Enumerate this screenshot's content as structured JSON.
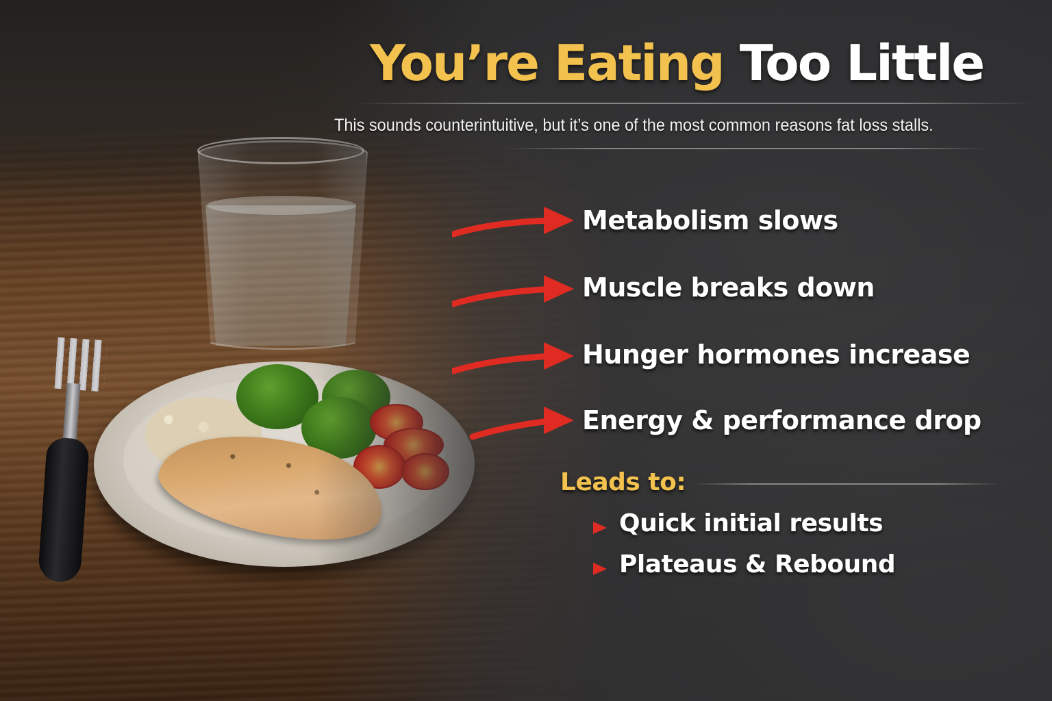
{
  "title": {
    "part1": "You’re Eating",
    "part2": "Too Little"
  },
  "subtitle": "This sounds counterintuitive, but it’s one of the most common reasons fat loss stalls.",
  "effects": [
    "Metabolism slows",
    "Muscle breaks down",
    "Hunger hormones increase",
    "Energy & performance drop"
  ],
  "leads_to": {
    "label": "Leads to:",
    "items": [
      "Quick initial results",
      "Plateaus & Rebound"
    ]
  },
  "colors": {
    "accent_gold": "#f2c14e",
    "arrow_red": "#e02b22",
    "text_white": "#ffffff"
  },
  "icons": [
    "red-arrow-icon",
    "red-triangle-bullet-icon"
  ]
}
